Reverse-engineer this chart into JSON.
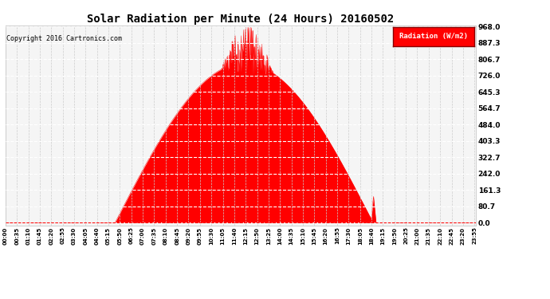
{
  "title": "Solar Radiation per Minute (24 Hours) 20160502",
  "copyright": "Copyright 2016 Cartronics.com",
  "legend_label": "Radiation (W/m2)",
  "bg_color": "#ffffff",
  "plot_bg_color": "#f5f5f5",
  "fill_color": "#ff0000",
  "line_color": "#ff0000",
  "grid_h_color": "#ffffff",
  "grid_v_color": "#cccccc",
  "y_ticks": [
    0.0,
    80.7,
    161.3,
    242.0,
    322.7,
    403.3,
    484.0,
    564.7,
    645.3,
    726.0,
    806.7,
    887.3,
    968.0
  ],
  "y_max": 968.0,
  "x_labels": [
    "00:00",
    "00:35",
    "01:10",
    "01:45",
    "02:20",
    "02:55",
    "03:30",
    "04:05",
    "04:40",
    "05:15",
    "05:50",
    "06:25",
    "07:00",
    "07:35",
    "08:10",
    "08:45",
    "09:20",
    "09:55",
    "10:30",
    "11:05",
    "11:40",
    "12:15",
    "12:50",
    "13:25",
    "14:00",
    "14:35",
    "15:10",
    "15:45",
    "16:20",
    "16:55",
    "17:30",
    "18:05",
    "18:40",
    "19:15",
    "19:50",
    "20:25",
    "21:00",
    "21:35",
    "22:10",
    "22:45",
    "23:20",
    "23:55"
  ],
  "sunrise_minute": 335,
  "sunset_minute": 1125,
  "peak_minute": 740,
  "peak_value": 968.0
}
